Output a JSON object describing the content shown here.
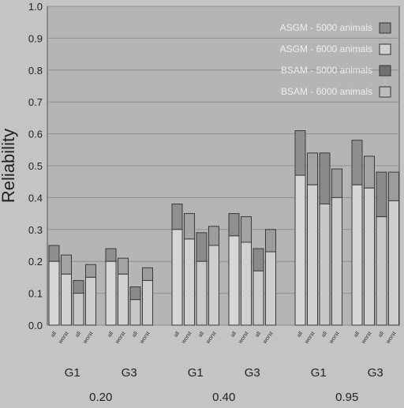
{
  "chart_data": {
    "type": "bar",
    "ylabel": "Reliability",
    "ylim": [
      0,
      1.0
    ],
    "yticks": [
      "0.0",
      "0.1",
      "0.2",
      "0.3",
      "0.4",
      "0.5",
      "0.6",
      "0.7",
      "0.8",
      "0.9",
      "1.0"
    ],
    "legend_position": "top-right",
    "legend": [
      {
        "label": "ASGM - 5000 animals",
        "color": "#8a8a8a"
      },
      {
        "label": "ASGM - 6000 animals",
        "color": "#d0d0d0"
      },
      {
        "label": "BSAM - 5000 animals",
        "color": "#707070"
      },
      {
        "label": "BSAM - 6000 animals",
        "color": "#bdbdbd"
      }
    ],
    "heritability_levels": [
      "0.20",
      "0.40",
      "0.95"
    ],
    "generations": [
      "G1",
      "G3"
    ],
    "bar_labels": [
      "all",
      "worst",
      "all",
      "worst"
    ],
    "groups": [
      {
        "h": "0.20",
        "gen": "G1",
        "totals": [
          0.25,
          0.22,
          0.14,
          0.19
        ],
        "lower": [
          0.2,
          0.16,
          0.1,
          0.15
        ]
      },
      {
        "h": "0.20",
        "gen": "G3",
        "totals": [
          0.24,
          0.21,
          0.12,
          0.18
        ],
        "lower": [
          0.2,
          0.16,
          0.08,
          0.14
        ]
      },
      {
        "h": "0.40",
        "gen": "G1",
        "totals": [
          0.38,
          0.35,
          0.29,
          0.31
        ],
        "lower": [
          0.3,
          0.27,
          0.2,
          0.25
        ]
      },
      {
        "h": "0.40",
        "gen": "G3",
        "totals": [
          0.35,
          0.34,
          0.24,
          0.3
        ],
        "lower": [
          0.28,
          0.26,
          0.17,
          0.23
        ]
      },
      {
        "h": "0.95",
        "gen": "G1",
        "totals": [
          0.61,
          0.54,
          0.54,
          0.49
        ],
        "lower": [
          0.47,
          0.44,
          0.38,
          0.4
        ]
      },
      {
        "h": "0.95",
        "gen": "G3",
        "totals": [
          0.58,
          0.53,
          0.48,
          0.48
        ],
        "lower": [
          0.44,
          0.43,
          0.34,
          0.39
        ]
      }
    ]
  }
}
